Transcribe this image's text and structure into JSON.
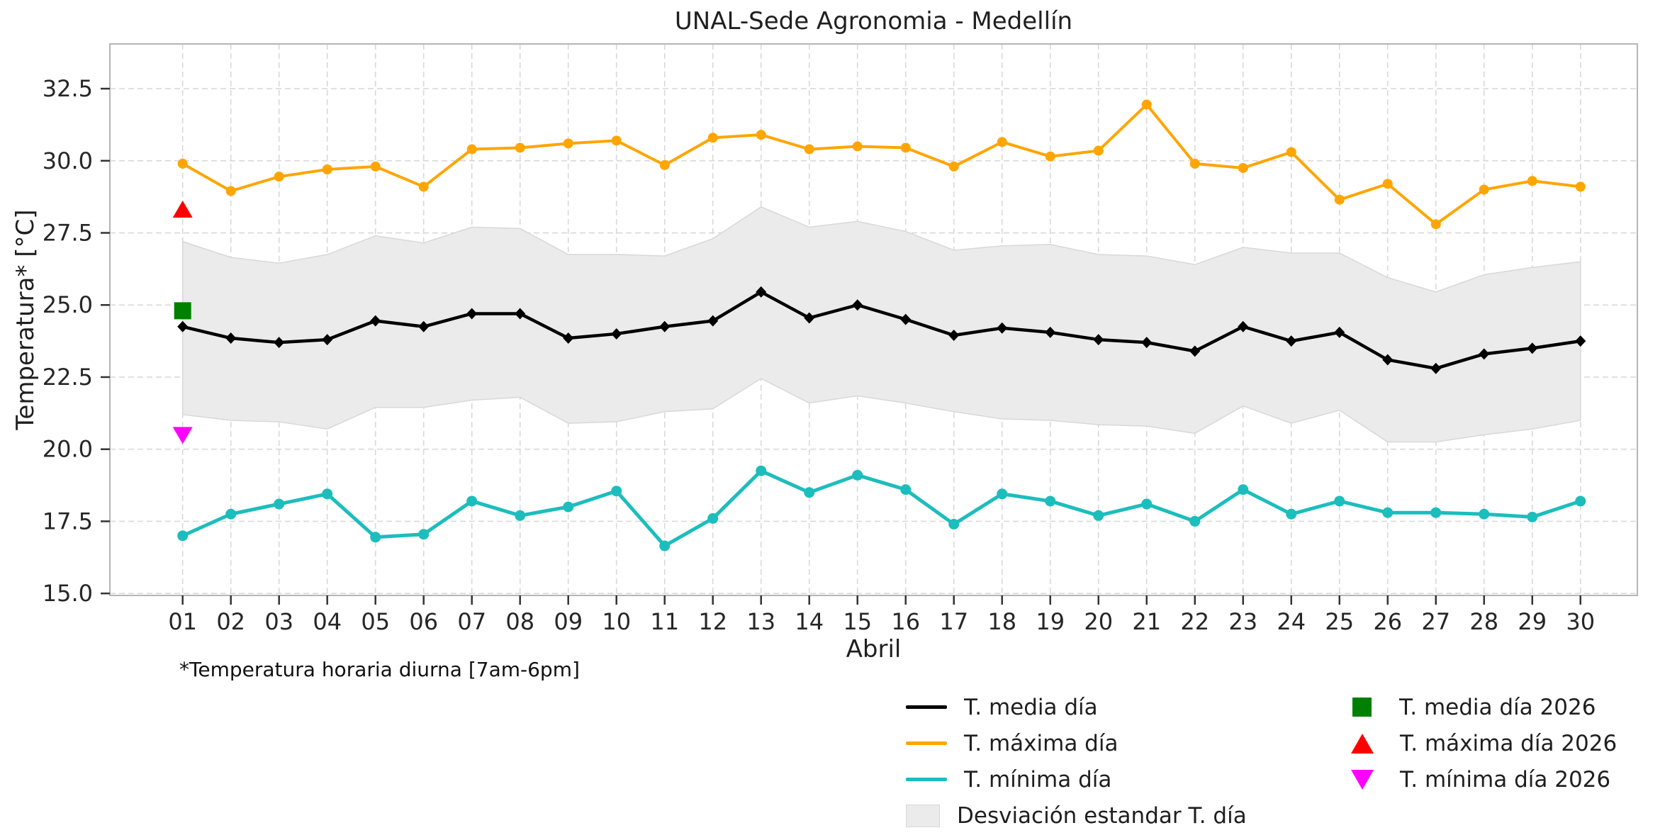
{
  "title": "UNAL-Sede Agronomia - Medellín",
  "footnote": "*Temperatura horaria diurna [7am-6pm]",
  "chart_data": {
    "type": "line",
    "title": "UNAL-Sede Agronomia - Medellín",
    "xlabel": "Abril",
    "ylabel": "Temperatura* [°C]",
    "categories": [
      "01",
      "02",
      "03",
      "04",
      "05",
      "06",
      "07",
      "08",
      "09",
      "10",
      "11",
      "12",
      "13",
      "14",
      "15",
      "16",
      "17",
      "18",
      "19",
      "20",
      "21",
      "22",
      "23",
      "24",
      "25",
      "26",
      "27",
      "28",
      "29",
      "30"
    ],
    "y_ticks": [
      15.0,
      17.5,
      20.0,
      22.5,
      25.0,
      27.5,
      30.0,
      32.5
    ],
    "y_tick_labels": [
      "15.0",
      "17.5",
      "20.0",
      "22.5",
      "25.0",
      "27.5",
      "30.0",
      "32.5"
    ],
    "xlim": [
      -0.51,
      31.18
    ],
    "ylim": [
      14.93,
      34.05
    ],
    "grid": true,
    "legend_position": "bottom",
    "series": [
      {
        "name": "T. máxima día",
        "color": "#ffa500",
        "marker": "circle",
        "line_width": 4,
        "values": [
          29.9,
          28.95,
          29.45,
          29.7,
          29.8,
          29.1,
          30.4,
          30.45,
          30.6,
          30.7,
          29.85,
          30.8,
          30.9,
          30.4,
          30.5,
          30.45,
          29.8,
          30.65,
          30.15,
          30.35,
          31.95,
          29.9,
          29.75,
          30.3,
          28.65,
          29.2,
          27.8,
          29.0,
          29.3,
          29.1
        ]
      },
      {
        "name": "T. media día",
        "color": "#000000",
        "marker": "diamond",
        "line_width": 4.5,
        "values": [
          24.25,
          23.85,
          23.7,
          23.8,
          24.45,
          24.25,
          24.7,
          24.7,
          23.85,
          24.0,
          24.25,
          24.45,
          25.45,
          24.55,
          25.0,
          24.5,
          23.95,
          24.2,
          24.05,
          23.8,
          23.7,
          23.4,
          24.25,
          23.75,
          24.05,
          23.1,
          22.8,
          23.3,
          23.5,
          23.75
        ]
      },
      {
        "name": "T. mínima día",
        "color": "#1cbdbd",
        "marker": "circle",
        "line_width": 5,
        "values": [
          17.0,
          17.75,
          18.1,
          18.45,
          16.95,
          17.05,
          18.2,
          17.7,
          18.0,
          18.55,
          16.65,
          17.6,
          19.25,
          18.5,
          19.1,
          18.6,
          17.4,
          18.45,
          18.2,
          17.7,
          18.1,
          17.5,
          18.6,
          17.75,
          18.2,
          17.8,
          17.8,
          17.75,
          17.65,
          18.2
        ]
      }
    ],
    "band": {
      "name": "Desviación estandar T. día",
      "fill": "#ebebeb",
      "edge": "#d8d8d8",
      "upper": [
        27.2,
        26.65,
        26.45,
        26.75,
        27.4,
        27.15,
        27.7,
        27.65,
        26.75,
        26.75,
        26.7,
        27.3,
        28.4,
        27.7,
        27.9,
        27.55,
        26.9,
        27.05,
        27.1,
        26.75,
        26.7,
        26.4,
        27.0,
        26.8,
        26.8,
        25.95,
        25.45,
        26.05,
        26.3,
        26.5
      ],
      "lower": [
        21.2,
        21.0,
        20.95,
        20.7,
        21.45,
        21.45,
        21.7,
        21.8,
        20.9,
        20.95,
        21.3,
        21.4,
        22.45,
        21.6,
        21.85,
        21.6,
        21.3,
        21.05,
        21.0,
        20.85,
        20.8,
        20.55,
        21.5,
        20.9,
        21.35,
        20.25,
        20.25,
        20.5,
        20.7,
        21.0
      ]
    },
    "points_2026": [
      {
        "name": "T. media día 2026",
        "marker": "square",
        "color": "#008000",
        "x": 1,
        "value": 24.8
      },
      {
        "name": "T. máxima día 2026",
        "marker": "triangle-up",
        "color": "#ff0000",
        "x": 1,
        "value": 28.3
      },
      {
        "name": "T. mínima día 2026",
        "marker": "triangle-down",
        "color": "#ff00ff",
        "x": 1,
        "value": 20.5
      }
    ],
    "legend": {
      "col1": [
        {
          "label": "T. media día",
          "swatch": "line",
          "color": "#000000"
        },
        {
          "label": "T. máxima día",
          "swatch": "line",
          "color": "#ffa500"
        },
        {
          "label": "T. mínima día",
          "swatch": "line",
          "color": "#1cbdbd"
        },
        {
          "label": "Desviación estandar T. día",
          "swatch": "patch",
          "color": "#ebebeb"
        }
      ],
      "col2": [
        {
          "label": "T. media día 2026",
          "swatch": "square",
          "color": "#008000"
        },
        {
          "label": "T. máxima día 2026",
          "swatch": "triangle-up",
          "color": "#ff0000"
        },
        {
          "label": "T. mínima día 2026",
          "swatch": "triangle-down",
          "color": "#ff00ff"
        }
      ]
    }
  }
}
